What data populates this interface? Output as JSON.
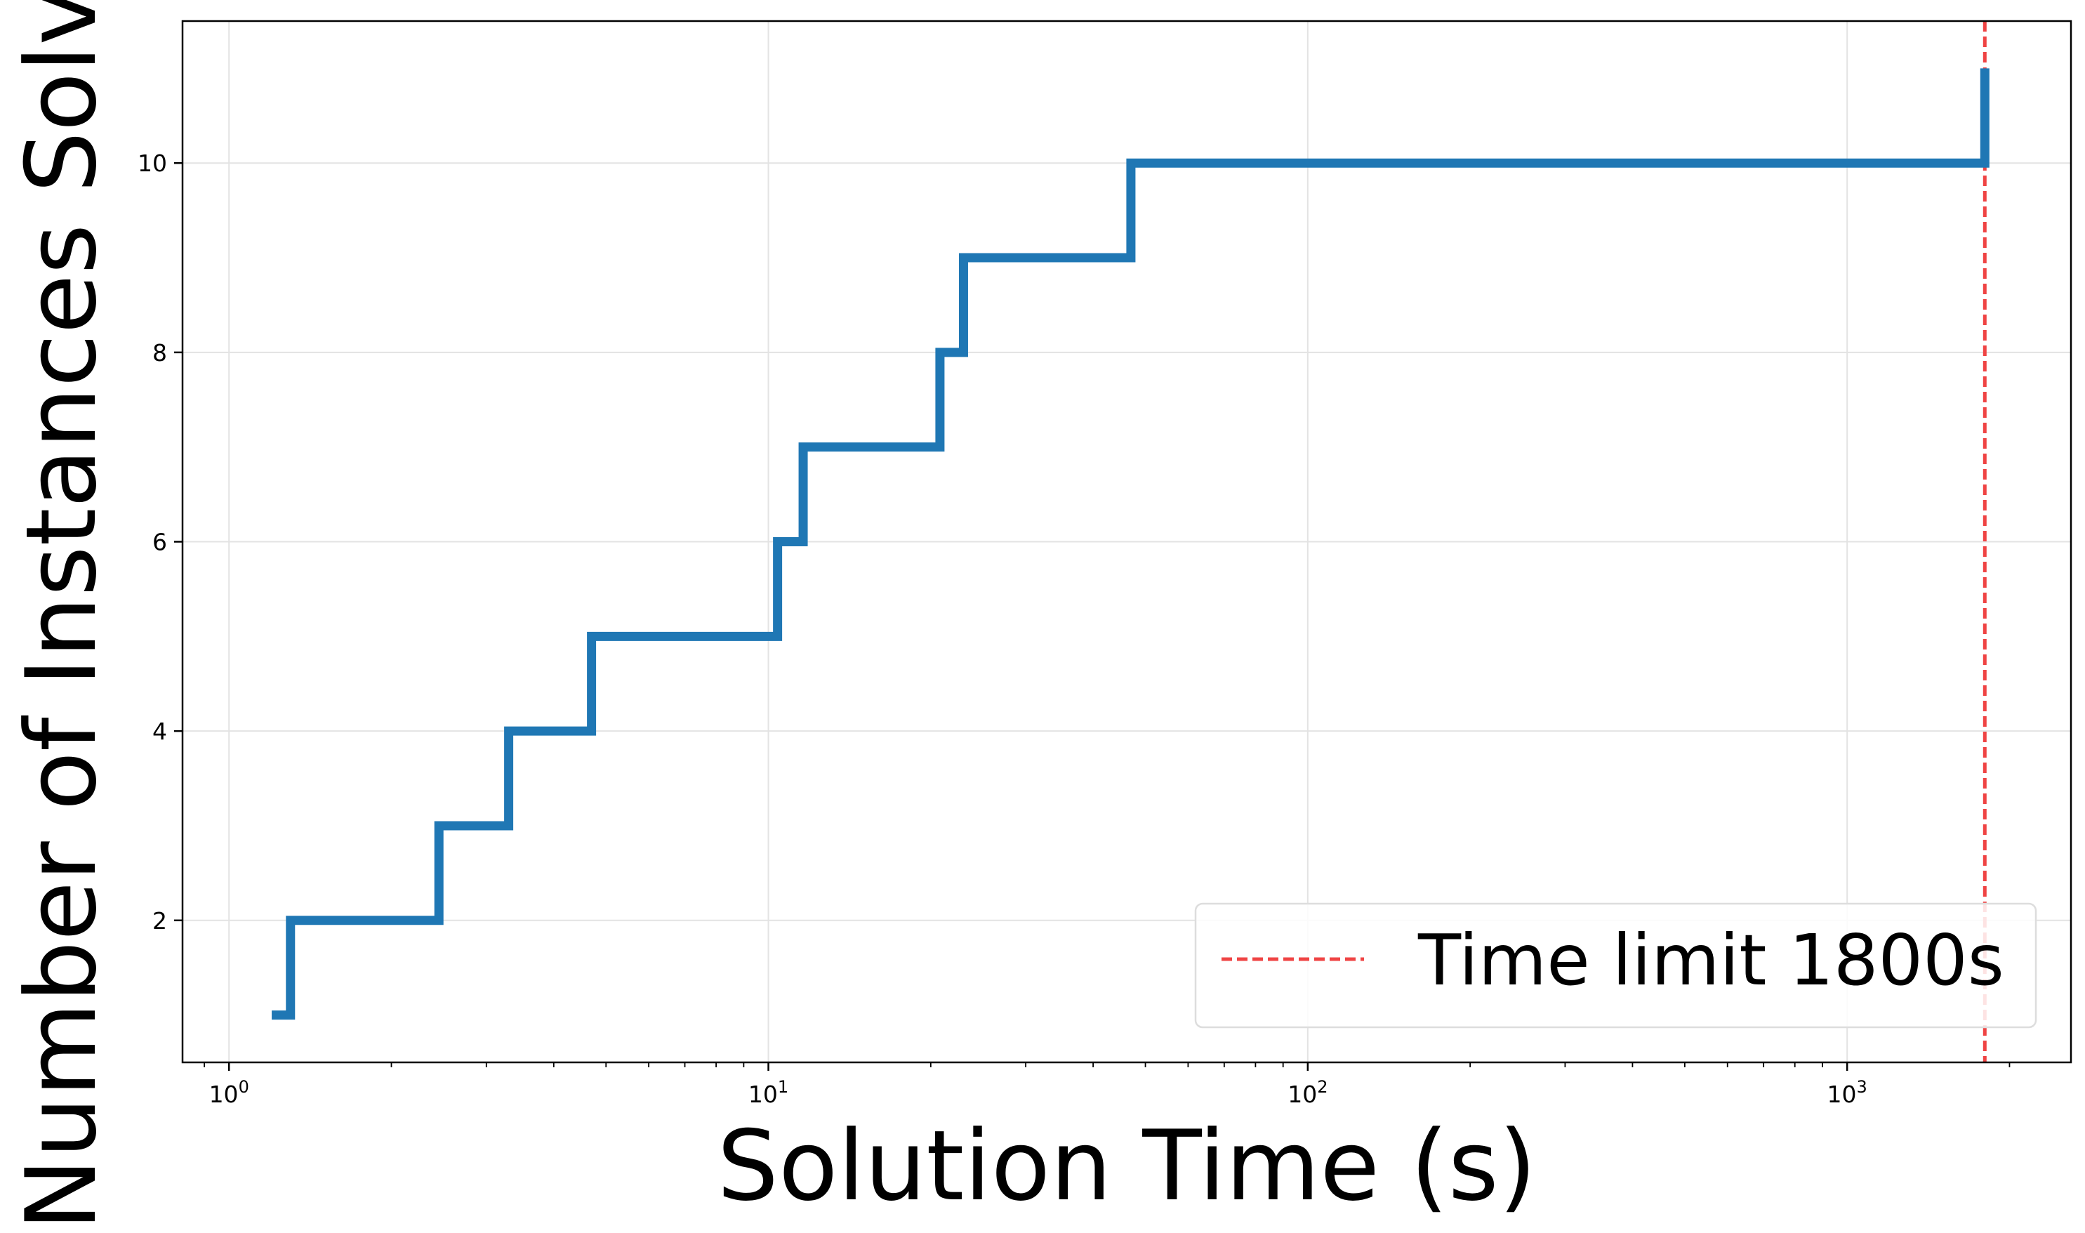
{
  "chart_data": {
    "type": "line",
    "title": "",
    "xlabel": "Solution Time (s)",
    "ylabel": "Number of Instances Solved",
    "xscale": "log",
    "xlim": [
      0.82,
      2600
    ],
    "ylim": [
      0.5,
      11.5
    ],
    "x_ticks": [
      {
        "value": 1,
        "base": "10",
        "exp": "0"
      },
      {
        "value": 10,
        "base": "10",
        "exp": "1"
      },
      {
        "value": 100,
        "base": "10",
        "exp": "2"
      },
      {
        "value": 1000,
        "base": "10",
        "exp": "3"
      }
    ],
    "y_ticks": [
      2,
      4,
      6,
      8,
      10
    ],
    "grid": true,
    "legend_position": "lower-right",
    "series": [
      {
        "step": "post",
        "color": "#1f77b4",
        "points": [
          {
            "x": 1.2,
            "y": 1
          },
          {
            "x": 1.3,
            "y": 2
          },
          {
            "x": 2.45,
            "y": 3
          },
          {
            "x": 3.3,
            "y": 4
          },
          {
            "x": 4.7,
            "y": 5
          },
          {
            "x": 10.4,
            "y": 6
          },
          {
            "x": 11.6,
            "y": 7
          },
          {
            "x": 20.8,
            "y": 8
          },
          {
            "x": 23.0,
            "y": 9
          },
          {
            "x": 47.0,
            "y": 10
          },
          {
            "x": 1800,
            "y": 11
          }
        ]
      }
    ],
    "reference_lines": [
      {
        "orientation": "vertical",
        "x": 1800,
        "color": "#ef4444",
        "style": "dashed",
        "name": "Time limit 1800s"
      }
    ]
  }
}
